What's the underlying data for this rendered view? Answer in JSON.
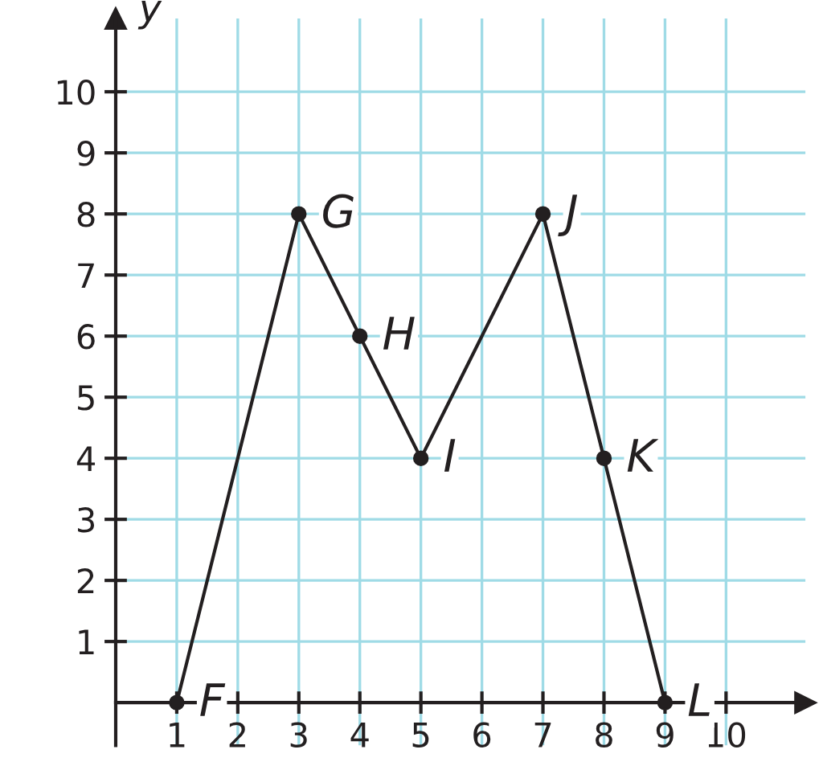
{
  "chart_data": {
    "type": "line",
    "ylabel": "y",
    "x": [
      1,
      3,
      4,
      5,
      7,
      8,
      9
    ],
    "series": [
      {
        "color": "#231f20",
        "values": [
          0,
          8,
          6,
          4,
          8,
          4,
          0
        ]
      }
    ],
    "marker": "circle",
    "line_style": "solid",
    "grid": true,
    "xlim": [
      0,
      11.3
    ],
    "ylim": [
      -0.7,
      11.2
    ],
    "xticks": [
      1,
      2,
      3,
      4,
      5,
      6,
      7,
      8,
      9,
      10
    ],
    "yticks": [
      1,
      2,
      3,
      4,
      5,
      6,
      7,
      8,
      9,
      10
    ],
    "annotations": [
      {
        "text": "F",
        "x": 1,
        "y": 0
      },
      {
        "text": "G",
        "x": 3,
        "y": 8
      },
      {
        "text": "H",
        "x": 4,
        "y": 6
      },
      {
        "text": "I",
        "x": 5,
        "y": 4
      },
      {
        "text": "J",
        "x": 7,
        "y": 8
      },
      {
        "text": "K",
        "x": 8,
        "y": 4
      },
      {
        "text": "L",
        "x": 9,
        "y": 0
      }
    ]
  }
}
